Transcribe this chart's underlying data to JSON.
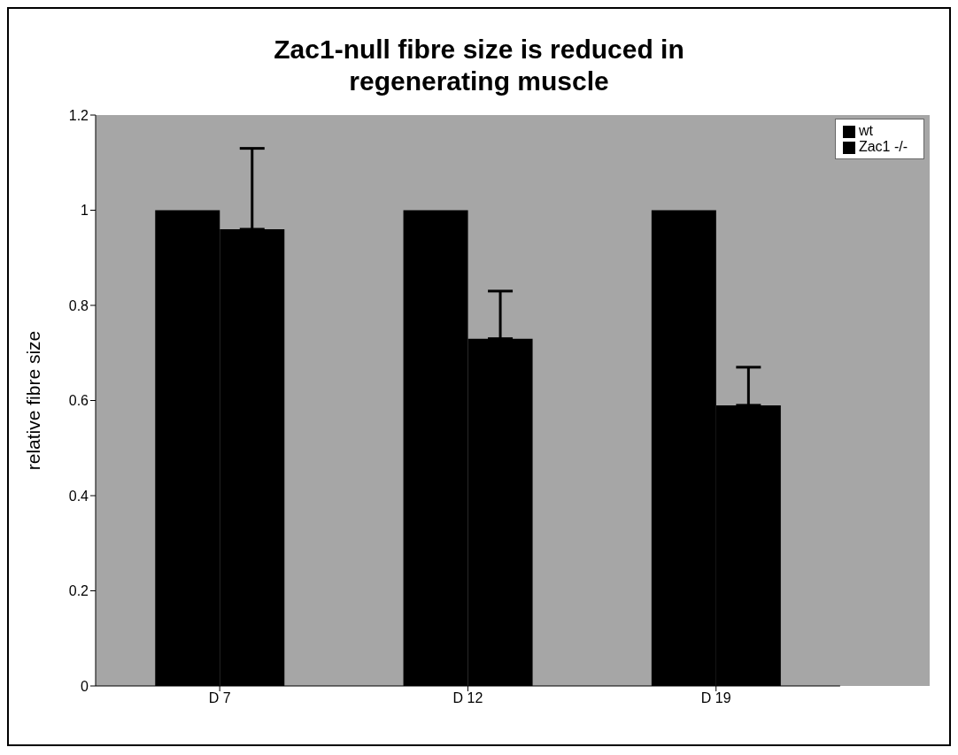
{
  "chart_data": {
    "type": "bar",
    "title": "Zac1-null fibre size is reduced in regenerating muscle",
    "ylabel": "relative fibre size",
    "categories": [
      "D 7",
      "D 12",
      "D 19"
    ],
    "series": [
      {
        "name": "wt",
        "color": "#000000",
        "values": [
          1,
          1,
          1
        ]
      },
      {
        "name": "Zac1 -/-",
        "color": "#000000",
        "values": [
          0.96,
          0.73,
          0.59
        ],
        "errors": [
          [
            0.96,
            1.13
          ],
          [
            0.73,
            0.83
          ],
          [
            0.59,
            0.67
          ]
        ]
      }
    ],
    "ylim": [
      0,
      1.2
    ],
    "yticks": [
      0,
      0.2,
      0.4,
      0.6,
      0.8,
      1,
      1.2
    ],
    "grid": false,
    "legend": "top right"
  }
}
